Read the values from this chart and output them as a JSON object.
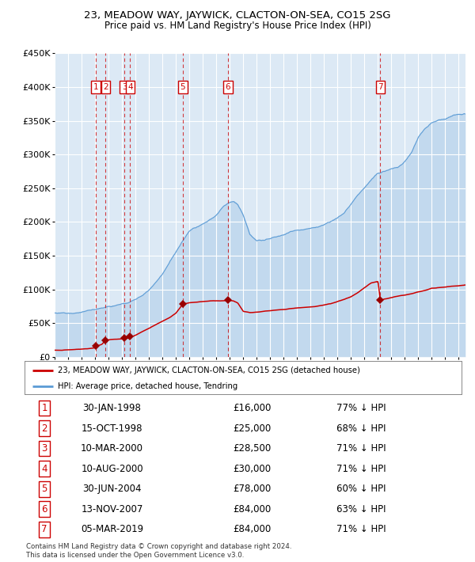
{
  "title": "23, MEADOW WAY, JAYWICK, CLACTON-ON-SEA, CO15 2SG",
  "subtitle": "Price paid vs. HM Land Registry's House Price Index (HPI)",
  "legend_label_red": "23, MEADOW WAY, JAYWICK, CLACTON-ON-SEA, CO15 2SG (detached house)",
  "legend_label_blue": "HPI: Average price, detached house, Tendring",
  "footer1": "Contains HM Land Registry data © Crown copyright and database right 2024.",
  "footer2": "This data is licensed under the Open Government Licence v3.0.",
  "transactions": [
    {
      "num": 1,
      "date": "30-JAN-1998",
      "x_year": 1998.08,
      "price": 16000,
      "pct": "77% ↓ HPI"
    },
    {
      "num": 2,
      "date": "15-OCT-1998",
      "x_year": 1998.79,
      "price": 25000,
      "pct": "68% ↓ HPI"
    },
    {
      "num": 3,
      "date": "10-MAR-2000",
      "x_year": 2000.19,
      "price": 28500,
      "pct": "71% ↓ HPI"
    },
    {
      "num": 4,
      "date": "10-AUG-2000",
      "x_year": 2000.61,
      "price": 30000,
      "pct": "71% ↓ HPI"
    },
    {
      "num": 5,
      "date": "30-JUN-2004",
      "x_year": 2004.5,
      "price": 78000,
      "pct": "60% ↓ HPI"
    },
    {
      "num": 6,
      "date": "13-NOV-2007",
      "x_year": 2007.87,
      "price": 84000,
      "pct": "63% ↓ HPI"
    },
    {
      "num": 7,
      "date": "05-MAR-2019",
      "x_year": 2019.18,
      "price": 84000,
      "pct": "71% ↓ HPI"
    }
  ],
  "ylim": [
    0,
    450000
  ],
  "xlim_left": 1995.0,
  "xlim_right": 2025.5,
  "yticks": [
    0,
    50000,
    100000,
    150000,
    200000,
    250000,
    300000,
    350000,
    400000,
    450000
  ],
  "ytick_labels": [
    "£0",
    "£50K",
    "£100K",
    "£150K",
    "£200K",
    "£250K",
    "£300K",
    "£350K",
    "£400K",
    "£450K"
  ],
  "bg_color": "#dce9f5",
  "grid_color": "#ffffff",
  "red_color": "#cc0000",
  "blue_color": "#5b9bd5",
  "marker_color": "#990000",
  "hpi_kx": [
    1995.0,
    1995.5,
    1996.0,
    1996.5,
    1997.0,
    1997.5,
    1998.0,
    1998.5,
    1999.0,
    1999.5,
    2000.0,
    2000.5,
    2001.0,
    2001.5,
    2002.0,
    2002.5,
    2003.0,
    2003.5,
    2004.0,
    2004.5,
    2005.0,
    2005.5,
    2006.0,
    2006.5,
    2007.0,
    2007.5,
    2008.0,
    2008.3,
    2008.6,
    2009.0,
    2009.5,
    2010.0,
    2010.5,
    2011.0,
    2011.5,
    2012.0,
    2012.5,
    2013.0,
    2013.5,
    2014.0,
    2014.5,
    2015.0,
    2015.5,
    2016.0,
    2016.5,
    2017.0,
    2017.5,
    2018.0,
    2018.5,
    2019.0,
    2019.5,
    2020.0,
    2020.5,
    2021.0,
    2021.5,
    2022.0,
    2022.5,
    2023.0,
    2023.5,
    2024.0,
    2024.5,
    2025.0,
    2025.5
  ],
  "hpi_ky": [
    65000,
    65500,
    67000,
    68500,
    70000,
    72000,
    74000,
    76000,
    78000,
    80000,
    83000,
    86000,
    91000,
    97000,
    106000,
    118000,
    130000,
    145000,
    162000,
    180000,
    195000,
    202000,
    207000,
    213000,
    220000,
    232000,
    238000,
    240000,
    235000,
    220000,
    190000,
    181000,
    182000,
    185000,
    188000,
    191000,
    195000,
    198000,
    200000,
    202000,
    205000,
    210000,
    215000,
    222000,
    230000,
    243000,
    258000,
    270000,
    282000,
    292000,
    295000,
    298000,
    302000,
    310000,
    322000,
    345000,
    358000,
    365000,
    370000,
    372000,
    375000,
    377000,
    378000
  ],
  "red_kx": [
    1995.0,
    1995.5,
    1996.0,
    1996.5,
    1997.0,
    1997.5,
    1998.0,
    1998.08,
    1998.5,
    1998.79,
    1999.0,
    1999.5,
    2000.0,
    2000.19,
    2000.5,
    2000.61,
    2001.0,
    2001.5,
    2002.0,
    2002.5,
    2003.0,
    2003.5,
    2004.0,
    2004.5,
    2004.5,
    2005.0,
    2005.5,
    2006.0,
    2006.5,
    2007.0,
    2007.5,
    2007.87,
    2008.0,
    2008.3,
    2008.6,
    2009.0,
    2009.5,
    2010.0,
    2010.5,
    2011.0,
    2011.5,
    2012.0,
    2012.5,
    2013.0,
    2013.5,
    2014.0,
    2014.5,
    2015.0,
    2015.5,
    2016.0,
    2016.5,
    2017.0,
    2017.5,
    2018.0,
    2018.5,
    2019.0,
    2019.18,
    2019.5,
    2020.0,
    2020.5,
    2021.0,
    2021.5,
    2022.0,
    2022.5,
    2023.0,
    2023.5,
    2024.0,
    2024.5,
    2025.0,
    2025.5
  ],
  "red_ky": [
    10000,
    10200,
    10500,
    11000,
    11500,
    12500,
    14000,
    16000,
    19000,
    25000,
    26000,
    27000,
    28000,
    28500,
    29000,
    30000,
    33000,
    38000,
    43000,
    48000,
    53000,
    58000,
    65000,
    78000,
    78000,
    80000,
    81000,
    82000,
    82500,
    83000,
    83500,
    84000,
    84000,
    83000,
    80000,
    68000,
    66000,
    67000,
    68000,
    69000,
    70000,
    71000,
    72000,
    73000,
    74000,
    75000,
    76000,
    78000,
    80000,
    83000,
    86000,
    90000,
    96000,
    103000,
    110000,
    112000,
    84000,
    86000,
    88000,
    90000,
    92000,
    94000,
    97000,
    99000,
    102000,
    103000,
    104000,
    105000,
    106000,
    107000
  ]
}
